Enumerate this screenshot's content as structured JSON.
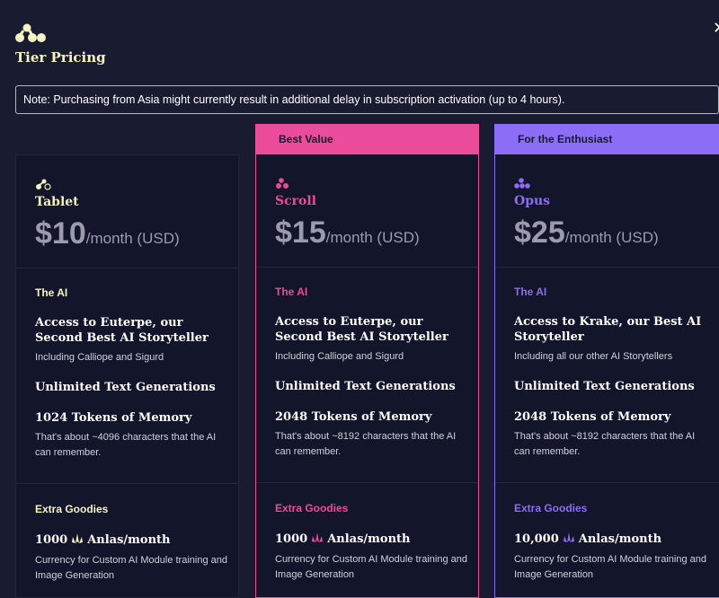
{
  "header": {
    "title": "Tier Pricing",
    "close_glyph": "✕"
  },
  "note": "Note: Purchasing from Asia might currently result in additional delay in subscription activation (up to 4 hours).",
  "colors": {
    "tablet": "#f5f3c2",
    "scroll": "#ea4c9b",
    "opus": "#8c6df5",
    "background": "#191b31"
  },
  "tiers": [
    {
      "key": "tablet",
      "banner": "",
      "icon": "tablet-icon",
      "name": "Tablet",
      "price": "$10",
      "per": "/month (USD)",
      "ai_label": "The AI",
      "access": "Access to Euterpe, our Second Best AI Storyteller",
      "access_sub": "Including Calliope and Sigurd",
      "generations": "Unlimited Text Generations",
      "memory": "1024 Tokens of Memory",
      "memory_sub": "That's about ~4096 characters that the AI can remember.",
      "extra_label": "Extra Goodies",
      "anlas_amount": "1000",
      "anlas_unit": "Anlas/month",
      "anlas_sub": "Currency for Custom AI Module training and Image Generation"
    },
    {
      "key": "scroll",
      "banner": "Best Value",
      "icon": "scroll-icon",
      "name": "Scroll",
      "price": "$15",
      "per": "/month (USD)",
      "ai_label": "The AI",
      "access": "Access to Euterpe, our Second Best AI Storyteller",
      "access_sub": "Including Calliope and Sigurd",
      "generations": "Unlimited Text Generations",
      "memory": "2048 Tokens of Memory",
      "memory_sub": "That's about ~8192 characters that the AI can remember.",
      "extra_label": "Extra Goodies",
      "anlas_amount": "1000",
      "anlas_unit": "Anlas/month",
      "anlas_sub": "Currency for Custom AI Module training and Image Generation"
    },
    {
      "key": "opus",
      "banner": "For the Enthusiast",
      "icon": "opus-icon",
      "name": "Opus",
      "price": "$25",
      "per": "/month (USD)",
      "ai_label": "The AI",
      "access": "Access to Krake, our Best AI Storyteller",
      "access_sub": "Including all our other AI Storytellers",
      "generations": "Unlimited Text Generations",
      "memory": "2048 Tokens of Memory",
      "memory_sub": "That's about ~8192 characters that the AI can remember.",
      "extra_label": "Extra Goodies",
      "anlas_amount": "10,000",
      "anlas_unit": "Anlas/month",
      "anlas_sub": "Currency for Custom AI Module training and Image Generation"
    }
  ]
}
